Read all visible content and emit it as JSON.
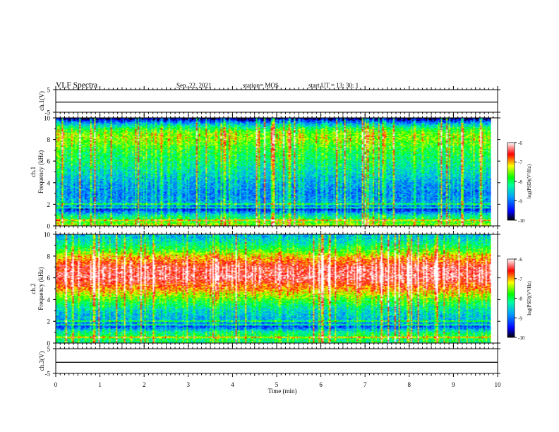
{
  "header": {
    "title": "VLF Spectra",
    "date": "Sep. 22, 2021",
    "station": "station= MOS",
    "start": "start  UT =   13: 30: 1"
  },
  "colormap": {
    "stops": [
      "#000000",
      "#0000ff",
      "#00a0ff",
      "#00ffa0",
      "#00ff00",
      "#ffff00",
      "#ff0000",
      "#ffffff"
    ]
  },
  "chart_data": [
    {
      "type": "line",
      "name": "ch1-waveform",
      "ylabel": "ch.1(V)",
      "ylim": [
        -5,
        5
      ],
      "yticks": [
        "5",
        "-5"
      ],
      "x": [
        0,
        10
      ],
      "y": [
        -0.5,
        -0.5
      ]
    },
    {
      "type": "heatmap",
      "name": "ch1-spectrogram",
      "ylabel": "ch.1\nFrequency  (kHz)",
      "ylim": [
        0,
        10
      ],
      "yticks": [
        "0",
        "2",
        "4",
        "6",
        "8",
        "10"
      ],
      "xlim": [
        0,
        9.85
      ],
      "colorbar": {
        "label": "log(PSD)(V²/Hz)",
        "range": [
          -10,
          -6
        ],
        "ticks": [
          "-6",
          "-7",
          "-8",
          "-9",
          "-10"
        ]
      },
      "intensity_profile": {
        "freq_khz": [
          0,
          0.5,
          1,
          1.5,
          2,
          3,
          4,
          5,
          6,
          7,
          8,
          8.5,
          9,
          9.5,
          10
        ],
        "log_psd": [
          -7.5,
          -8,
          -8.5,
          -9.5,
          -8.8,
          -9,
          -8.8,
          -8.5,
          -8.2,
          -8,
          -7.6,
          -7.6,
          -8,
          -8.8,
          -10
        ]
      }
    },
    {
      "type": "heatmap",
      "name": "ch2-spectrogram",
      "ylabel": "ch.2\nFrequency  (kHz)",
      "ylim": [
        0,
        10
      ],
      "yticks": [
        "0",
        "2",
        "4",
        "6",
        "8",
        "10"
      ],
      "xlim": [
        0,
        9.85
      ],
      "colorbar": {
        "label": "log(PSD)(V²/Hz)",
        "range": [
          -10,
          -6
        ],
        "ticks": [
          "-6",
          "-7",
          "-8",
          "-9",
          "-10"
        ]
      },
      "intensity_profile": {
        "freq_khz": [
          0,
          0.5,
          1,
          1.5,
          2,
          3,
          4,
          5,
          6,
          7,
          8,
          8.5,
          9,
          9.5,
          10
        ],
        "log_psd": [
          -8.2,
          -8,
          -8.3,
          -9.3,
          -8.8,
          -8.5,
          -7.8,
          -7,
          -6.4,
          -6.5,
          -7.2,
          -7.8,
          -8.2,
          -8.5,
          -8.8
        ]
      }
    },
    {
      "type": "line",
      "name": "ch3-waveform",
      "ylabel": "ch.3(V)",
      "ylim": [
        -5,
        5
      ],
      "yticks": [
        "5",
        "-5"
      ],
      "x": [
        0,
        10
      ],
      "y": [
        -0.5,
        -0.5
      ]
    }
  ],
  "xaxis": {
    "label": "Time  (min)",
    "range": [
      0,
      10
    ],
    "ticks": [
      "0",
      "1",
      "2",
      "3",
      "4",
      "5",
      "6",
      "7",
      "8",
      "9",
      "10"
    ]
  }
}
